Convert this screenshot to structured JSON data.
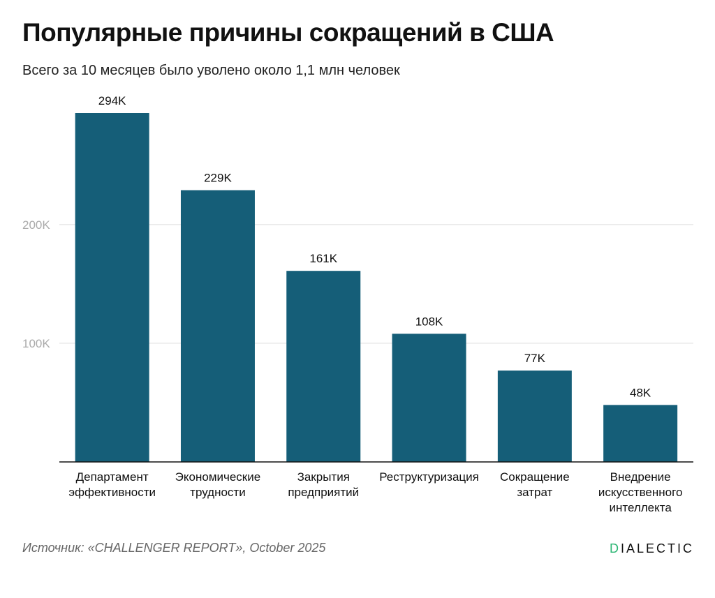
{
  "title": "Популярные причины сокращений в США",
  "subtitle": "Всего за 10 месяцев было уволено около 1,1 млн человек",
  "source": "Источник: «CHALLENGER REPORT», October 2025",
  "brand": {
    "first_letter": "D",
    "rest": "IALECTIC",
    "accent_color": "#2bb673"
  },
  "colors": {
    "bar": "#155e78",
    "grid": "#dddddd",
    "axis": "#111111",
    "tick_label": "#aaaaaa"
  },
  "chart_data": {
    "type": "bar",
    "categories": [
      [
        "Департамент",
        "эффективности"
      ],
      [
        "Экономические",
        "трудности"
      ],
      [
        "Закрытия",
        "предприятий"
      ],
      [
        "Реструктуризация"
      ],
      [
        "Сокращение",
        "затрат"
      ],
      [
        "Внедрение",
        "искусственного",
        "интеллекта"
      ]
    ],
    "values": [
      294,
      229,
      161,
      108,
      77,
      48
    ],
    "value_labels": [
      "294K",
      "229K",
      "161K",
      "108K",
      "77K",
      "48K"
    ],
    "yticks": [
      100,
      200
    ],
    "ytick_labels": [
      "100K",
      "200K"
    ],
    "ylim": [
      0,
      300
    ],
    "grid": true,
    "xlabel": "",
    "ylabel": ""
  }
}
